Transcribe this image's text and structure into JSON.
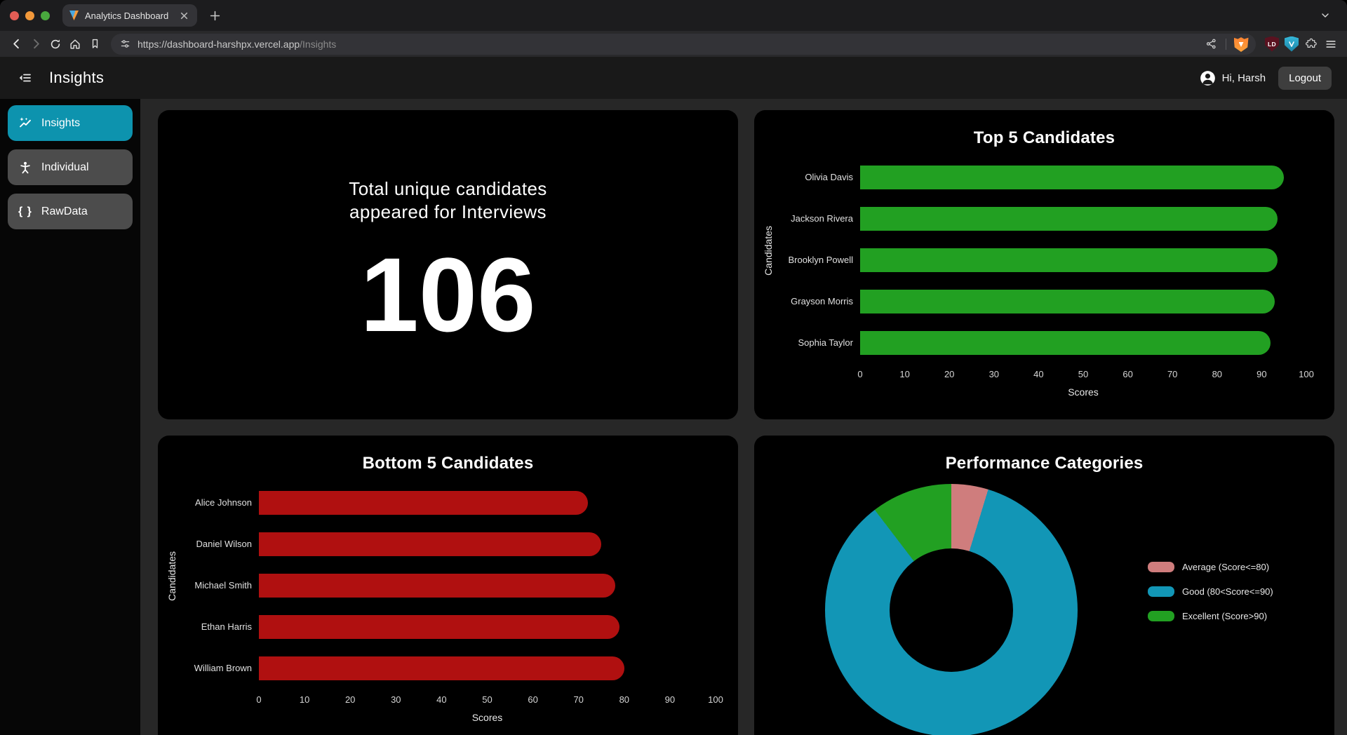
{
  "browser": {
    "tab_title": "Analytics Dashboard",
    "url_base": "https://dashboard-harshpx.vercel.app",
    "url_path": "/Insights",
    "ld_badge": "LD"
  },
  "header": {
    "title": "Insights",
    "greeting": "Hi, Harsh",
    "logout": "Logout"
  },
  "sidebar": {
    "items": [
      {
        "label": "Insights",
        "active": true
      },
      {
        "label": "Individual",
        "active": false
      },
      {
        "label": "RawData",
        "active": false
      }
    ]
  },
  "stat_card": {
    "line1": "Total unique candidates",
    "line2": "appeared for Interviews",
    "value": "106"
  },
  "theme": {
    "accent_teal": "#0d93ae",
    "card_bg": "#000000",
    "page_bg": "#272727",
    "bar_green": "#22a022",
    "bar_red": "#b01010",
    "donut_pink": "#cf7d7d",
    "donut_blue": "#1296b6"
  },
  "chart_data": [
    {
      "type": "bar",
      "orientation": "horizontal",
      "title": "Top 5 Candidates",
      "categories": [
        "Olivia Davis",
        "Jackson Rivera",
        "Brooklyn Powell",
        "Grayson Morris",
        "Sophia Taylor"
      ],
      "values": [
        95,
        93.5,
        93.5,
        93,
        92
      ],
      "bar_color": "#22a022",
      "xlabel": "Scores",
      "ylabel": "Candidates",
      "xlim": [
        0,
        100
      ],
      "xticks": [
        0,
        10,
        20,
        30,
        40,
        50,
        60,
        70,
        80,
        90,
        100
      ],
      "grid": false
    },
    {
      "type": "bar",
      "orientation": "horizontal",
      "title": "Bottom 5 Candidates",
      "categories": [
        "Alice Johnson",
        "Daniel Wilson",
        "Michael Smith",
        "Ethan Harris",
        "William Brown"
      ],
      "values": [
        72,
        75,
        78,
        79,
        80
      ],
      "bar_color": "#b01010",
      "xlabel": "Scores",
      "ylabel": "Candidates",
      "xlim": [
        0,
        100
      ],
      "xticks": [
        0,
        10,
        20,
        30,
        40,
        50,
        60,
        70,
        80,
        90,
        100
      ],
      "grid": false
    },
    {
      "type": "donut",
      "title": "Performance Categories",
      "slices": [
        {
          "label": "Average (Score<=80)",
          "value": 5,
          "color": "#cf7d7d"
        },
        {
          "label": "Good (80<Score<=90)",
          "value": 90,
          "color": "#1296b6"
        },
        {
          "label": "Excellent (Score>90)",
          "value": 11,
          "color": "#22a022"
        }
      ],
      "legend_position": "right"
    }
  ]
}
